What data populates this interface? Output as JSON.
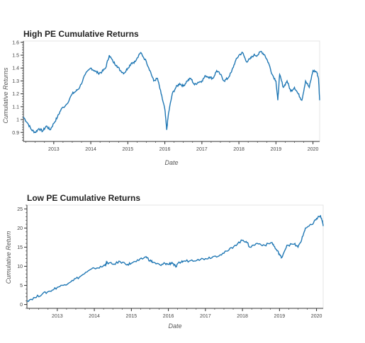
{
  "chart_data": [
    {
      "type": "line",
      "title": "High PE Cumulative Returns",
      "xlabel": "Date",
      "ylabel": "Cumulative Returns",
      "xlim": [
        2012.18,
        2020.18
      ],
      "ylim": [
        0.83,
        1.61
      ],
      "x_ticks": [
        "2013",
        "2014",
        "2015",
        "2016",
        "2017",
        "2018",
        "2019",
        "2020"
      ],
      "y_ticks": [
        "0.9",
        "1",
        "1.1",
        "1.2",
        "1.3",
        "1.4",
        "1.5",
        "1.6"
      ],
      "line_color": "#1f77b4",
      "grid": false,
      "series": [
        {
          "x": [
            2012.18,
            2012.3,
            2012.4,
            2012.5,
            2012.6,
            2012.7,
            2012.8,
            2012.9,
            2013.0,
            2013.1,
            2013.2,
            2013.35,
            2013.5,
            2013.6,
            2013.7,
            2013.85,
            2014.0,
            2014.1,
            2014.2,
            2014.3,
            2014.4,
            2014.5,
            2014.6,
            2014.7,
            2014.8,
            2014.9,
            2015.0,
            2015.1,
            2015.2,
            2015.35,
            2015.5,
            2015.6,
            2015.7,
            2015.8,
            2015.9,
            2016.0,
            2016.05,
            2016.1,
            2016.2,
            2016.3,
            2016.4,
            2016.5,
            2016.6,
            2016.7,
            2016.8,
            2016.9,
            2017.0,
            2017.1,
            2017.2,
            2017.3,
            2017.4,
            2017.5,
            2017.6,
            2017.7,
            2017.8,
            2017.9,
            2018.0,
            2018.1,
            2018.2,
            2018.3,
            2018.4,
            2018.5,
            2018.6,
            2018.7,
            2018.8,
            2018.9,
            2019.0,
            2019.05,
            2019.1,
            2019.2,
            2019.3,
            2019.4,
            2019.5,
            2019.6,
            2019.7,
            2019.8,
            2019.9,
            2020.0,
            2020.1,
            2020.15,
            2020.18
          ],
          "y": [
            1.02,
            0.97,
            0.92,
            0.9,
            0.93,
            0.91,
            0.95,
            0.92,
            0.97,
            1.02,
            1.08,
            1.12,
            1.2,
            1.22,
            1.25,
            1.35,
            1.4,
            1.38,
            1.36,
            1.37,
            1.4,
            1.5,
            1.45,
            1.42,
            1.38,
            1.36,
            1.4,
            1.44,
            1.45,
            1.52,
            1.45,
            1.38,
            1.3,
            1.32,
            1.2,
            1.08,
            0.92,
            1.05,
            1.2,
            1.25,
            1.28,
            1.26,
            1.3,
            1.32,
            1.27,
            1.29,
            1.3,
            1.34,
            1.33,
            1.32,
            1.38,
            1.35,
            1.3,
            1.32,
            1.37,
            1.45,
            1.5,
            1.52,
            1.45,
            1.47,
            1.5,
            1.5,
            1.53,
            1.5,
            1.44,
            1.35,
            1.3,
            1.15,
            1.35,
            1.25,
            1.3,
            1.22,
            1.25,
            1.2,
            1.15,
            1.3,
            1.25,
            1.38,
            1.37,
            1.32,
            1.15
          ]
        }
      ]
    },
    {
      "type": "line",
      "title": "Low PE Cumulative Returns",
      "xlabel": "Date",
      "ylabel": "Cumulative Return",
      "xlim": [
        2012.18,
        2020.18
      ],
      "ylim": [
        -1,
        26
      ],
      "x_ticks": [
        "2013",
        "2014",
        "2015",
        "2016",
        "2017",
        "2018",
        "2019",
        "2020"
      ],
      "y_ticks": [
        "0",
        "5",
        "10",
        "15",
        "20",
        "25"
      ],
      "line_color": "#1f77b4",
      "grid": false,
      "series": [
        {
          "x": [
            2012.18,
            2012.4,
            2012.6,
            2012.8,
            2013.0,
            2013.2,
            2013.4,
            2013.6,
            2013.8,
            2014.0,
            2014.2,
            2014.3,
            2014.35,
            2014.5,
            2014.7,
            2014.9,
            2015.0,
            2015.2,
            2015.4,
            2015.5,
            2015.6,
            2015.8,
            2015.9,
            2016.0,
            2016.1,
            2016.2,
            2016.3,
            2016.4,
            2016.6,
            2016.8,
            2017.0,
            2017.2,
            2017.4,
            2017.6,
            2017.8,
            2018.0,
            2018.1,
            2018.2,
            2018.4,
            2018.6,
            2018.8,
            2018.9,
            2019.0,
            2019.05,
            2019.2,
            2019.4,
            2019.5,
            2019.6,
            2019.7,
            2019.9,
            2020.0,
            2020.1,
            2020.15,
            2020.18
          ],
          "y": [
            1.0,
            1.8,
            2.8,
            3.5,
            4.5,
            5.2,
            6.3,
            7.2,
            8.5,
            9.5,
            9.8,
            10.5,
            11.0,
            10.5,
            11.2,
            10.5,
            10.8,
            11.5,
            12.5,
            11.5,
            11.0,
            10.2,
            10.8,
            10.5,
            11.0,
            9.8,
            11.0,
            11.3,
            11.5,
            11.8,
            12.0,
            12.5,
            13.0,
            14.0,
            15.5,
            16.8,
            16.5,
            15.0,
            16.0,
            15.5,
            16.2,
            14.5,
            13.2,
            12.2,
            15.5,
            15.8,
            15.0,
            17.0,
            20.0,
            21.0,
            22.5,
            23.2,
            22.0,
            20.5
          ]
        }
      ]
    }
  ]
}
